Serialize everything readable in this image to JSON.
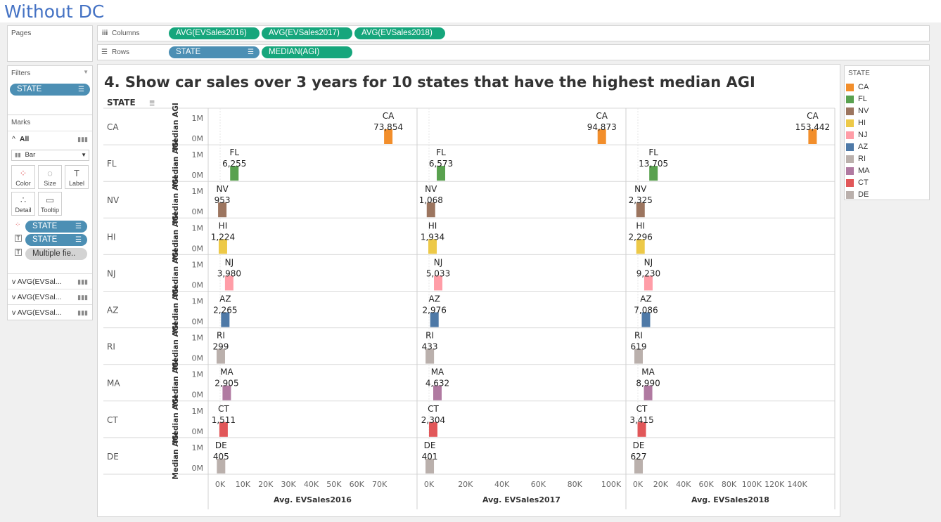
{
  "heading": "Without DC",
  "shelves": {
    "pages_label": "Pages",
    "columns_label": "Columns",
    "rows_label": "Rows",
    "columns": [
      "AVG(EVSales2016)",
      "AVG(EVSales2017)",
      "AVG(EVSales2018)"
    ],
    "rows": [
      "STATE",
      "MEDIAN(AGI)"
    ]
  },
  "filters": {
    "title": "Filters",
    "items": [
      "STATE"
    ]
  },
  "marks": {
    "title": "Marks",
    "all_label": "All",
    "mark_type": "Bar",
    "buttons": [
      "Color",
      "Size",
      "Label",
      "Detail",
      "Tooltip"
    ],
    "pills": [
      "STATE",
      "STATE",
      "Multiple fie.."
    ],
    "measures": [
      "AVG(EVSal...",
      "AVG(EVSal...",
      "AVG(EVSal..."
    ]
  },
  "legend": {
    "title": "STATE",
    "items": [
      {
        "label": "CA",
        "color": "#f28e2b"
      },
      {
        "label": "FL",
        "color": "#59a14f"
      },
      {
        "label": "NV",
        "color": "#9c755f"
      },
      {
        "label": "HI",
        "color": "#edc948"
      },
      {
        "label": "NJ",
        "color": "#ff9da7"
      },
      {
        "label": "AZ",
        "color": "#4e79a7"
      },
      {
        "label": "RI",
        "color": "#bab0ac"
      },
      {
        "label": "MA",
        "color": "#b07aa1"
      },
      {
        "label": "CT",
        "color": "#e15759"
      },
      {
        "label": "DE",
        "color": "#bab0ac"
      }
    ]
  },
  "chart_data": {
    "type": "bar",
    "title": "4. Show car sales over 3 years for 10 states that have the highest median AGI",
    "row_header": "STATE",
    "row_axis_label": "Median AGI",
    "row_axis_ticks": [
      "1M",
      "0M"
    ],
    "categories": [
      "CA",
      "FL",
      "NV",
      "HI",
      "NJ",
      "AZ",
      "RI",
      "MA",
      "CT",
      "DE"
    ],
    "series": [
      {
        "name": "Avg. EVSales2016",
        "values": [
          73854,
          6255,
          953,
          1224,
          3980,
          2265,
          299,
          2905,
          1511,
          405
        ],
        "labels": [
          "73,854",
          "6,255",
          "953",
          "1,224",
          "3,980",
          "2,265",
          "299",
          "2,905",
          "1,511",
          "405"
        ],
        "ticks": [
          "0K",
          "10K",
          "20K",
          "30K",
          "40K",
          "50K",
          "60K",
          "70K"
        ],
        "xlim": [
          0,
          80000
        ]
      },
      {
        "name": "Avg. EVSales2017",
        "values": [
          94873,
          6573,
          1068,
          1934,
          5033,
          2976,
          433,
          4632,
          2304,
          401
        ],
        "labels": [
          "94,873",
          "6,573",
          "1,068",
          "1,934",
          "5,033",
          "2,976",
          "433",
          "4,632",
          "2,304",
          "401"
        ],
        "ticks": [
          "0K",
          "20K",
          "40K",
          "60K",
          "80K",
          "100K"
        ],
        "xlim": [
          0,
          100000
        ]
      },
      {
        "name": "Avg. EVSales2018",
        "values": [
          153442,
          13705,
          2325,
          2296,
          9230,
          7086,
          619,
          8990,
          3415,
          627
        ],
        "labels": [
          "153,442",
          "13,705",
          "2,325",
          "2,296",
          "9,230",
          "7,086",
          "619",
          "8,990",
          "3,415",
          "627"
        ],
        "ticks": [
          "0K",
          "20K",
          "40K",
          "60K",
          "80K",
          "100K",
          "120K",
          "140K"
        ],
        "xlim": [
          0,
          160000
        ]
      }
    ]
  }
}
